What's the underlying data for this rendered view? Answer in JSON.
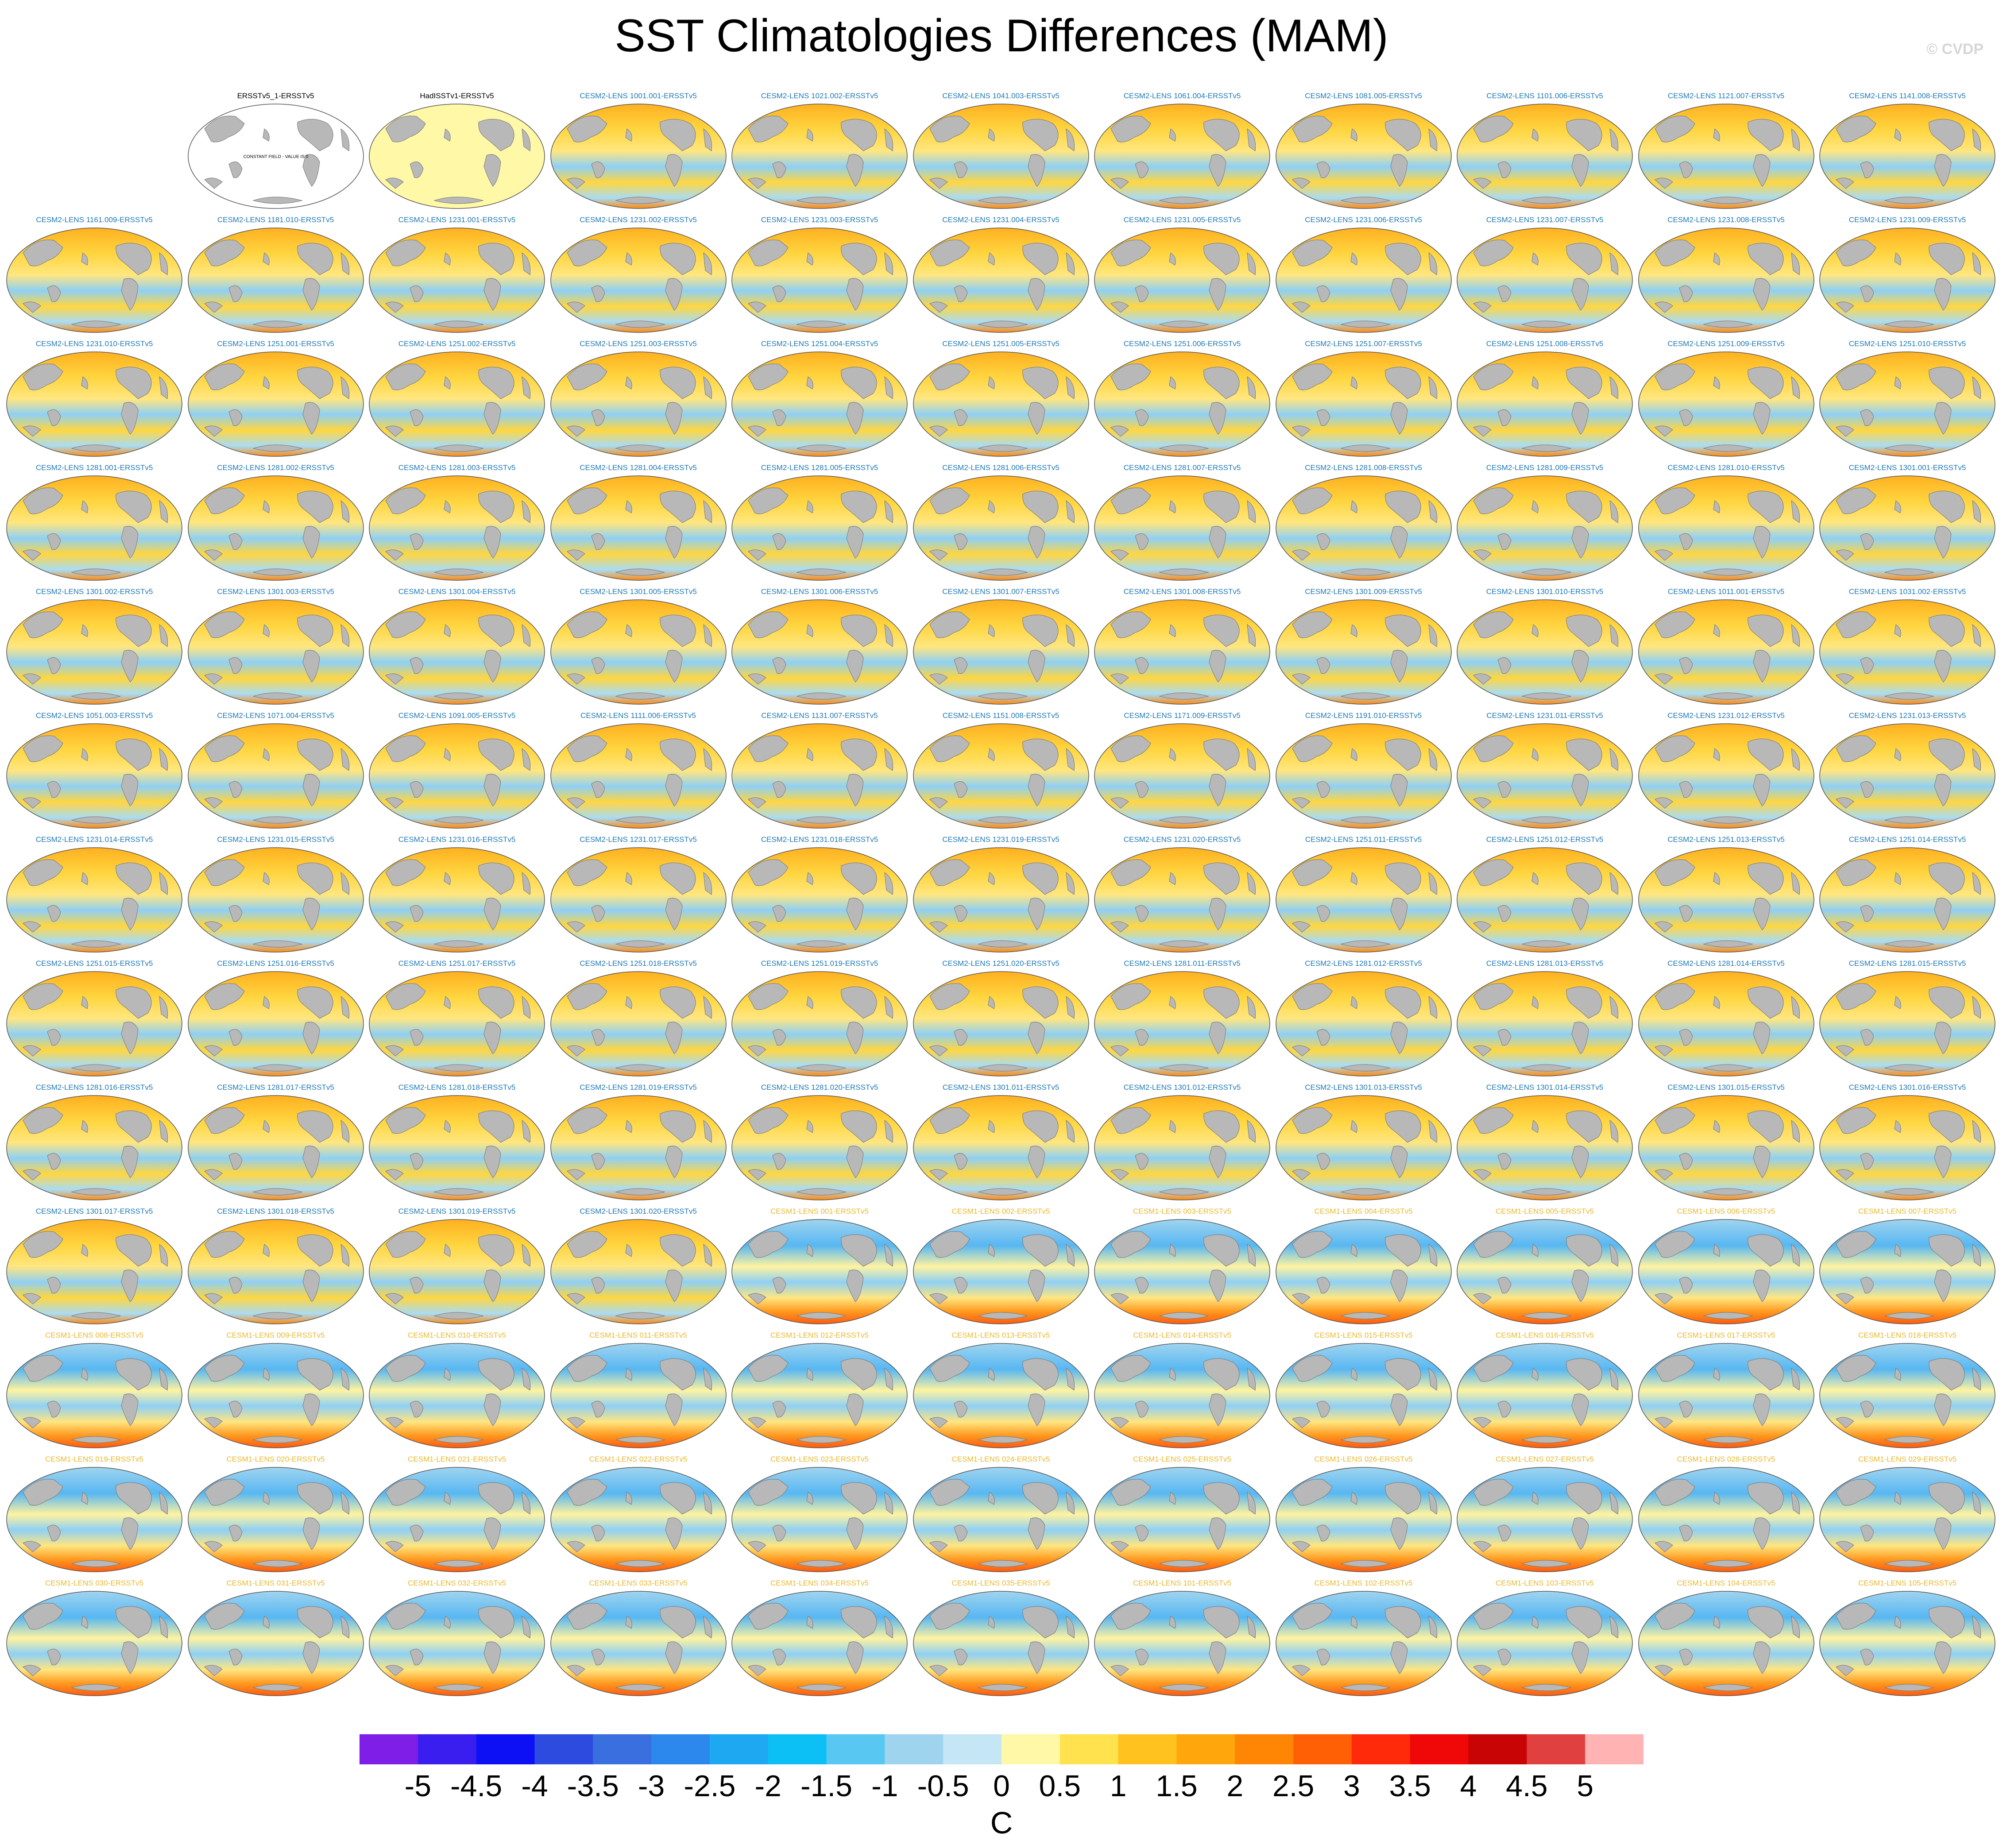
{
  "title": "SST Climatologies Differences (MAM)",
  "watermark": "© CVDP",
  "colorbar": {
    "units": "C",
    "tick_labels": [
      "-5",
      "-4.5",
      "-4",
      "-3.5",
      "-3",
      "-2.5",
      "-2",
      "-1.5",
      "-1",
      "-0.5",
      "0",
      "0.5",
      "1",
      "1.5",
      "2",
      "2.5",
      "3",
      "3.5",
      "4",
      "4.5",
      "5"
    ],
    "colors": [
      "#7f1ee6",
      "#3a1ef0",
      "#0d10f5",
      "#2e4be0",
      "#3a6fe0",
      "#2d88ee",
      "#1fa8f2",
      "#0cc0f5",
      "#58c7f2",
      "#9fd4ef",
      "#c4e6f5",
      "#fff8a6",
      "#ffe24d",
      "#ffc21f",
      "#ffa60d",
      "#ff8605",
      "#ff5f05",
      "#ff2a0a",
      "#f00707",
      "#c90404",
      "#e04040",
      "#ffb3b3"
    ]
  },
  "label_colors": {
    "reference": "#000000",
    "cesm2": "#1f78b4",
    "cesm1": "#e8b830"
  },
  "panel_colors": {
    "ocean_reference": "#ffffff",
    "ocean_hadisst": "#fff8a6",
    "land": "#b8b8b8",
    "outline": "#555555"
  },
  "panels": [
    {
      "label": "",
      "type": "empty"
    },
    {
      "label": "ERSSTv5_1-ERSSTv5",
      "type": "ref_blank",
      "note": "CONSTANT FIELD - VALUE IS 0"
    },
    {
      "label": "HadISSTv1-ERSSTv5",
      "type": "ref_yellow"
    },
    {
      "label": "CESM2-LENS 1001.001-ERSSTv5",
      "type": "cesm2"
    },
    {
      "label": "CESM2-LENS 1021.002-ERSSTv5",
      "type": "cesm2"
    },
    {
      "label": "CESM2-LENS 1041.003-ERSSTv5",
      "type": "cesm2"
    },
    {
      "label": "CESM2-LENS 1061.004-ERSSTv5",
      "type": "cesm2"
    },
    {
      "label": "CESM2-LENS 1081.005-ERSSTv5",
      "type": "cesm2"
    },
    {
      "label": "CESM2-LENS 1101.006-ERSSTv5",
      "type": "cesm2"
    },
    {
      "label": "CESM2-LENS 1121.007-ERSSTv5",
      "type": "cesm2"
    },
    {
      "label": "CESM2-LENS 1141.008-ERSSTv5",
      "type": "cesm2"
    },
    {
      "label": "CESM2-LENS 1161.009-ERSSTv5",
      "type": "cesm2"
    },
    {
      "label": "CESM2-LENS 1181.010-ERSSTv5",
      "type": "cesm2"
    },
    {
      "label": "CESM2-LENS 1231.001-ERSSTv5",
      "type": "cesm2"
    },
    {
      "label": "CESM2-LENS 1231.002-ERSSTv5",
      "type": "cesm2"
    },
    {
      "label": "CESM2-LENS 1231.003-ERSSTv5",
      "type": "cesm2"
    },
    {
      "label": "CESM2-LENS 1231.004-ERSSTv5",
      "type": "cesm2"
    },
    {
      "label": "CESM2-LENS 1231.005-ERSSTv5",
      "type": "cesm2"
    },
    {
      "label": "CESM2-LENS 1231.006-ERSSTv5",
      "type": "cesm2"
    },
    {
      "label": "CESM2-LENS 1231.007-ERSSTv5",
      "type": "cesm2"
    },
    {
      "label": "CESM2-LENS 1231.008-ERSSTv5",
      "type": "cesm2"
    },
    {
      "label": "CESM2-LENS 1231.009-ERSSTv5",
      "type": "cesm2"
    },
    {
      "label": "CESM2-LENS 1231.010-ERSSTv5",
      "type": "cesm2"
    },
    {
      "label": "CESM2-LENS 1251.001-ERSSTv5",
      "type": "cesm2"
    },
    {
      "label": "CESM2-LENS 1251.002-ERSSTv5",
      "type": "cesm2"
    },
    {
      "label": "CESM2-LENS 1251.003-ERSSTv5",
      "type": "cesm2"
    },
    {
      "label": "CESM2-LENS 1251.004-ERSSTv5",
      "type": "cesm2"
    },
    {
      "label": "CESM2-LENS 1251.005-ERSSTv5",
      "type": "cesm2"
    },
    {
      "label": "CESM2-LENS 1251.006-ERSSTv5",
      "type": "cesm2"
    },
    {
      "label": "CESM2-LENS 1251.007-ERSSTv5",
      "type": "cesm2"
    },
    {
      "label": "CESM2-LENS 1251.008-ERSSTv5",
      "type": "cesm2"
    },
    {
      "label": "CESM2-LENS 1251.009-ERSSTv5",
      "type": "cesm2"
    },
    {
      "label": "CESM2-LENS 1251.010-ERSSTv5",
      "type": "cesm2"
    },
    {
      "label": "CESM2-LENS 1281.001-ERSSTv5",
      "type": "cesm2"
    },
    {
      "label": "CESM2-LENS 1281.002-ERSSTv5",
      "type": "cesm2"
    },
    {
      "label": "CESM2-LENS 1281.003-ERSSTv5",
      "type": "cesm2"
    },
    {
      "label": "CESM2-LENS 1281.004-ERSSTv5",
      "type": "cesm2"
    },
    {
      "label": "CESM2-LENS 1281.005-ERSSTv5",
      "type": "cesm2"
    },
    {
      "label": "CESM2-LENS 1281.006-ERSSTv5",
      "type": "cesm2"
    },
    {
      "label": "CESM2-LENS 1281.007-ERSSTv5",
      "type": "cesm2"
    },
    {
      "label": "CESM2-LENS 1281.008-ERSSTv5",
      "type": "cesm2"
    },
    {
      "label": "CESM2-LENS 1281.009-ERSSTv5",
      "type": "cesm2"
    },
    {
      "label": "CESM2-LENS 1281.010-ERSSTv5",
      "type": "cesm2"
    },
    {
      "label": "CESM2-LENS 1301.001-ERSSTv5",
      "type": "cesm2"
    },
    {
      "label": "CESM2-LENS 1301.002-ERSSTv5",
      "type": "cesm2"
    },
    {
      "label": "CESM2-LENS 1301.003-ERSSTv5",
      "type": "cesm2"
    },
    {
      "label": "CESM2-LENS 1301.004-ERSSTv5",
      "type": "cesm2"
    },
    {
      "label": "CESM2-LENS 1301.005-ERSSTv5",
      "type": "cesm2"
    },
    {
      "label": "CESM2-LENS 1301.006-ERSSTv5",
      "type": "cesm2"
    },
    {
      "label": "CESM2-LENS 1301.007-ERSSTv5",
      "type": "cesm2"
    },
    {
      "label": "CESM2-LENS 1301.008-ERSSTv5",
      "type": "cesm2"
    },
    {
      "label": "CESM2-LENS 1301.009-ERSSTv5",
      "type": "cesm2"
    },
    {
      "label": "CESM2-LENS 1301.010-ERSSTv5",
      "type": "cesm2"
    },
    {
      "label": "CESM2-LENS 1011.001-ERSSTv5",
      "type": "cesm2"
    },
    {
      "label": "CESM2-LENS 1031.002-ERSSTv5",
      "type": "cesm2"
    },
    {
      "label": "CESM2-LENS 1051.003-ERSSTv5",
      "type": "cesm2"
    },
    {
      "label": "CESM2-LENS 1071.004-ERSSTv5",
      "type": "cesm2"
    },
    {
      "label": "CESM2-LENS 1091.005-ERSSTv5",
      "type": "cesm2"
    },
    {
      "label": "CESM2-LENS 1111.006-ERSSTv5",
      "type": "cesm2"
    },
    {
      "label": "CESM2-LENS 1131.007-ERSSTv5",
      "type": "cesm2"
    },
    {
      "label": "CESM2-LENS 1151.008-ERSSTv5",
      "type": "cesm2"
    },
    {
      "label": "CESM2-LENS 1171.009-ERSSTv5",
      "type": "cesm2"
    },
    {
      "label": "CESM2-LENS 1191.010-ERSSTv5",
      "type": "cesm2"
    },
    {
      "label": "CESM2-LENS 1231.011-ERSSTv5",
      "type": "cesm2"
    },
    {
      "label": "CESM2-LENS 1231.012-ERSSTv5",
      "type": "cesm2"
    },
    {
      "label": "CESM2-LENS 1231.013-ERSSTv5",
      "type": "cesm2"
    },
    {
      "label": "CESM2-LENS 1231.014-ERSSTv5",
      "type": "cesm2"
    },
    {
      "label": "CESM2-LENS 1231.015-ERSSTv5",
      "type": "cesm2"
    },
    {
      "label": "CESM2-LENS 1231.016-ERSSTv5",
      "type": "cesm2"
    },
    {
      "label": "CESM2-LENS 1231.017-ERSSTv5",
      "type": "cesm2"
    },
    {
      "label": "CESM2-LENS 1231.018-ERSSTv5",
      "type": "cesm2"
    },
    {
      "label": "CESM2-LENS 1231.019-ERSSTv5",
      "type": "cesm2"
    },
    {
      "label": "CESM2-LENS 1231.020-ERSSTv5",
      "type": "cesm2"
    },
    {
      "label": "CESM2-LENS 1251.011-ERSSTv5",
      "type": "cesm2"
    },
    {
      "label": "CESM2-LENS 1251.012-ERSSTv5",
      "type": "cesm2"
    },
    {
      "label": "CESM2-LENS 1251.013-ERSSTv5",
      "type": "cesm2"
    },
    {
      "label": "CESM2-LENS 1251.014-ERSSTv5",
      "type": "cesm2"
    },
    {
      "label": "CESM2-LENS 1251.015-ERSSTv5",
      "type": "cesm2"
    },
    {
      "label": "CESM2-LENS 1251.016-ERSSTv5",
      "type": "cesm2"
    },
    {
      "label": "CESM2-LENS 1251.017-ERSSTv5",
      "type": "cesm2"
    },
    {
      "label": "CESM2-LENS 1251.018-ERSSTv5",
      "type": "cesm2"
    },
    {
      "label": "CESM2-LENS 1251.019-ERSSTv5",
      "type": "cesm2"
    },
    {
      "label": "CESM2-LENS 1251.020-ERSSTv5",
      "type": "cesm2"
    },
    {
      "label": "CESM2-LENS 1281.011-ERSSTv5",
      "type": "cesm2"
    },
    {
      "label": "CESM2-LENS 1281.012-ERSSTv5",
      "type": "cesm2"
    },
    {
      "label": "CESM2-LENS 1281.013-ERSSTv5",
      "type": "cesm2"
    },
    {
      "label": "CESM2-LENS 1281.014-ERSSTv5",
      "type": "cesm2"
    },
    {
      "label": "CESM2-LENS 1281.015-ERSSTv5",
      "type": "cesm2"
    },
    {
      "label": "CESM2-LENS 1281.016-ERSSTv5",
      "type": "cesm2"
    },
    {
      "label": "CESM2-LENS 1281.017-ERSSTv5",
      "type": "cesm2"
    },
    {
      "label": "CESM2-LENS 1281.018-ERSSTv5",
      "type": "cesm2"
    },
    {
      "label": "CESM2-LENS 1281.019-ERSSTv5",
      "type": "cesm2"
    },
    {
      "label": "CESM2-LENS 1281.020-ERSSTv5",
      "type": "cesm2"
    },
    {
      "label": "CESM2-LENS 1301.011-ERSSTv5",
      "type": "cesm2"
    },
    {
      "label": "CESM2-LENS 1301.012-ERSSTv5",
      "type": "cesm2"
    },
    {
      "label": "CESM2-LENS 1301.013-ERSSTv5",
      "type": "cesm2"
    },
    {
      "label": "CESM2-LENS 1301.014-ERSSTv5",
      "type": "cesm2"
    },
    {
      "label": "CESM2-LENS 1301.015-ERSSTv5",
      "type": "cesm2"
    },
    {
      "label": "CESM2-LENS 1301.016-ERSSTv5",
      "type": "cesm2"
    },
    {
      "label": "CESM2-LENS 1301.017-ERSSTv5",
      "type": "cesm2"
    },
    {
      "label": "CESM2-LENS 1301.018-ERSSTv5",
      "type": "cesm2"
    },
    {
      "label": "CESM2-LENS 1301.019-ERSSTv5",
      "type": "cesm2"
    },
    {
      "label": "CESM2-LENS 1301.020-ERSSTv5",
      "type": "cesm2"
    },
    {
      "label": "CESM1-LENS 001-ERSSTv5",
      "type": "cesm1"
    },
    {
      "label": "CESM1-LENS 002-ERSSTv5",
      "type": "cesm1"
    },
    {
      "label": "CESM1-LENS 003-ERSSTv5",
      "type": "cesm1"
    },
    {
      "label": "CESM1-LENS 004-ERSSTv5",
      "type": "cesm1"
    },
    {
      "label": "CESM1-LENS 005-ERSSTv5",
      "type": "cesm1"
    },
    {
      "label": "CESM1-LENS 006-ERSSTv5",
      "type": "cesm1"
    },
    {
      "label": "CESM1-LENS 007-ERSSTv5",
      "type": "cesm1"
    },
    {
      "label": "CESM1-LENS 008-ERSSTv5",
      "type": "cesm1"
    },
    {
      "label": "CESM1-LENS 009-ERSSTv5",
      "type": "cesm1"
    },
    {
      "label": "CESM1-LENS 010-ERSSTv5",
      "type": "cesm1"
    },
    {
      "label": "CESM1-LENS 011-ERSSTv5",
      "type": "cesm1"
    },
    {
      "label": "CESM1-LENS 012-ERSSTv5",
      "type": "cesm1"
    },
    {
      "label": "CESM1-LENS 013-ERSSTv5",
      "type": "cesm1"
    },
    {
      "label": "CESM1-LENS 014-ERSSTv5",
      "type": "cesm1"
    },
    {
      "label": "CESM1-LENS 015-ERSSTv5",
      "type": "cesm1"
    },
    {
      "label": "CESM1-LENS 016-ERSSTv5",
      "type": "cesm1"
    },
    {
      "label": "CESM1-LENS 017-ERSSTv5",
      "type": "cesm1"
    },
    {
      "label": "CESM1-LENS 018-ERSSTv5",
      "type": "cesm1"
    },
    {
      "label": "CESM1-LENS 019-ERSSTv5",
      "type": "cesm1"
    },
    {
      "label": "CESM1-LENS 020-ERSSTv5",
      "type": "cesm1"
    },
    {
      "label": "CESM1-LENS 021-ERSSTv5",
      "type": "cesm1"
    },
    {
      "label": "CESM1-LENS 022-ERSSTv5",
      "type": "cesm1"
    },
    {
      "label": "CESM1-LENS 023-ERSSTv5",
      "type": "cesm1"
    },
    {
      "label": "CESM1-LENS 024-ERSSTv5",
      "type": "cesm1"
    },
    {
      "label": "CESM1-LENS 025-ERSSTv5",
      "type": "cesm1"
    },
    {
      "label": "CESM1-LENS 026-ERSSTv5",
      "type": "cesm1"
    },
    {
      "label": "CESM1-LENS 027-ERSSTv5",
      "type": "cesm1"
    },
    {
      "label": "CESM1-LENS 028-ERSSTv5",
      "type": "cesm1"
    },
    {
      "label": "CESM1-LENS 029-ERSSTv5",
      "type": "cesm1"
    },
    {
      "label": "CESM1-LENS 030-ERSSTv5",
      "type": "cesm1"
    },
    {
      "label": "CESM1-LENS 031-ERSSTv5",
      "type": "cesm1"
    },
    {
      "label": "CESM1-LENS 032-ERSSTv5",
      "type": "cesm1"
    },
    {
      "label": "CESM1-LENS 033-ERSSTv5",
      "type": "cesm1"
    },
    {
      "label": "CESM1-LENS 034-ERSSTv5",
      "type": "cesm1"
    },
    {
      "label": "CESM1-LENS 035-ERSSTv5",
      "type": "cesm1"
    },
    {
      "label": "CESM1-LENS 101-ERSSTv5",
      "type": "cesm1"
    },
    {
      "label": "CESM1-LENS 102-ERSSTv5",
      "type": "cesm1"
    },
    {
      "label": "CESM1-LENS 103-ERSSTv5",
      "type": "cesm1"
    },
    {
      "label": "CESM1-LENS 104-ERSSTv5",
      "type": "cesm1"
    },
    {
      "label": "CESM1-LENS 105-ERSSTv5",
      "type": "cesm1"
    }
  ]
}
